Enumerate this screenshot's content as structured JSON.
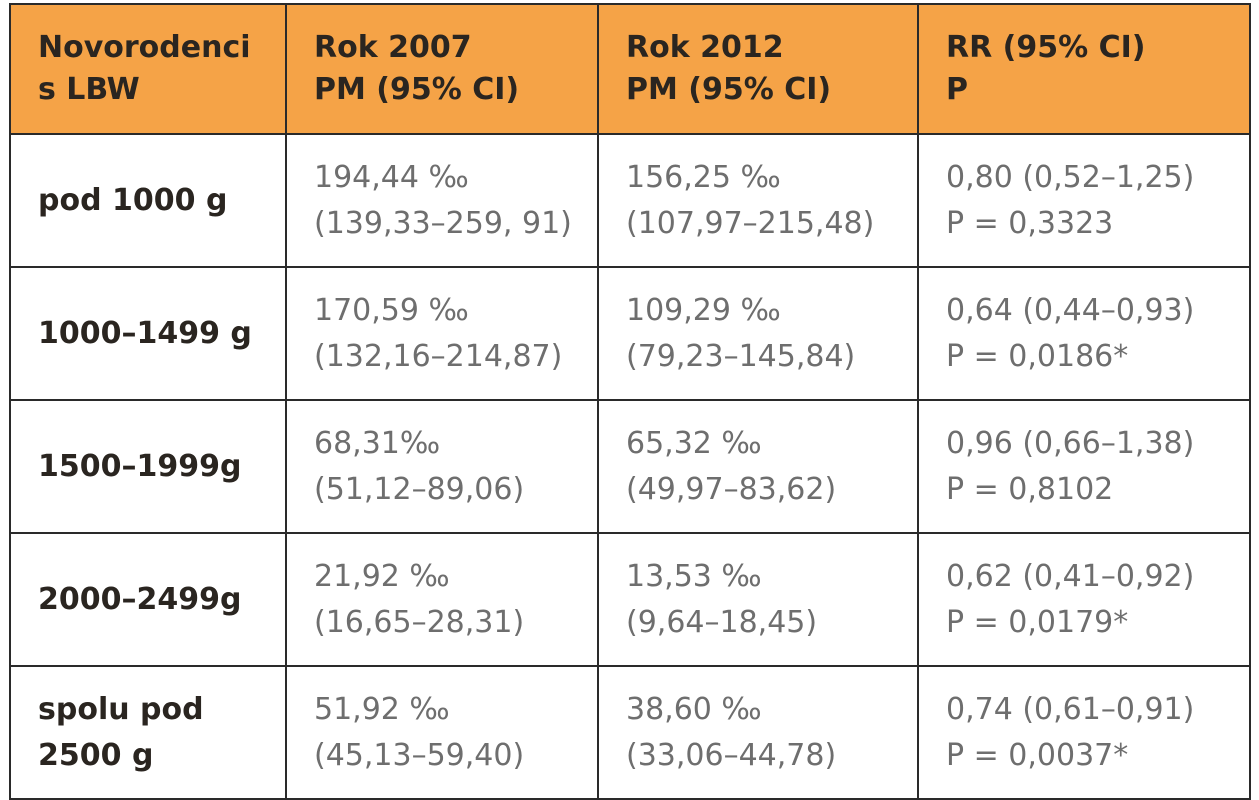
{
  "table": {
    "headers": [
      {
        "line1": "Novorodenci",
        "line2": "s LBW"
      },
      {
        "line1": "Rok 2007",
        "line2": "PM (95% CI)"
      },
      {
        "line1": "Rok 2012",
        "line2": "PM (95% CI)"
      },
      {
        "line1": "RR (95% CI)",
        "line2": "P"
      }
    ],
    "rows": [
      {
        "label1": "pod 1000 g",
        "label2": "",
        "y2007": {
          "pm": "194,44 ‰",
          "ci": "(139,33–259, 91)"
        },
        "y2012": {
          "pm": "156,25 ‰",
          "ci": "(107,97–215,48)"
        },
        "rr": {
          "value": "0,80 (0,52–1,25)",
          "p": "P = 0,3323"
        }
      },
      {
        "label1": "1000–1499 g",
        "label2": "",
        "y2007": {
          "pm": "170,59 ‰",
          "ci": "(132,16–214,87)"
        },
        "y2012": {
          "pm": "109,29 ‰",
          "ci": "(79,23–145,84)"
        },
        "rr": {
          "value": "0,64 (0,44–0,93)",
          "p": "P = 0,0186*"
        }
      },
      {
        "label1": "1500–1999g",
        "label2": "",
        "y2007": {
          "pm": "68,31‰",
          "ci": "(51,12–89,06)"
        },
        "y2012": {
          "pm": "65,32 ‰",
          "ci": "(49,97–83,62)"
        },
        "rr": {
          "value": "0,96 (0,66–1,38)",
          "p": "P = 0,8102"
        }
      },
      {
        "label1": "2000–2499g",
        "label2": "",
        "y2007": {
          "pm": "21,92 ‰",
          "ci": "(16,65–28,31)"
        },
        "y2012": {
          "pm": "13,53 ‰",
          "ci": "(9,64–18,45)"
        },
        "rr": {
          "value": "0,62 (0,41–0,92)",
          "p": "P = 0,0179*"
        }
      },
      {
        "label1": "spolu pod",
        "label2": "2500 g",
        "y2007": {
          "pm": "51,92 ‰",
          "ci": "(45,13–59,40)"
        },
        "y2012": {
          "pm": "38,60 ‰",
          "ci": "(33,06–44,78)"
        },
        "rr": {
          "value": "0,74 (0,61–0,91)",
          "p": "P = 0,0037*"
        }
      }
    ],
    "colors": {
      "header_bg": "#f5a347",
      "header_text": "#2a2520",
      "body_text": "#6e6e6e",
      "border": "#2a2a2a"
    }
  }
}
